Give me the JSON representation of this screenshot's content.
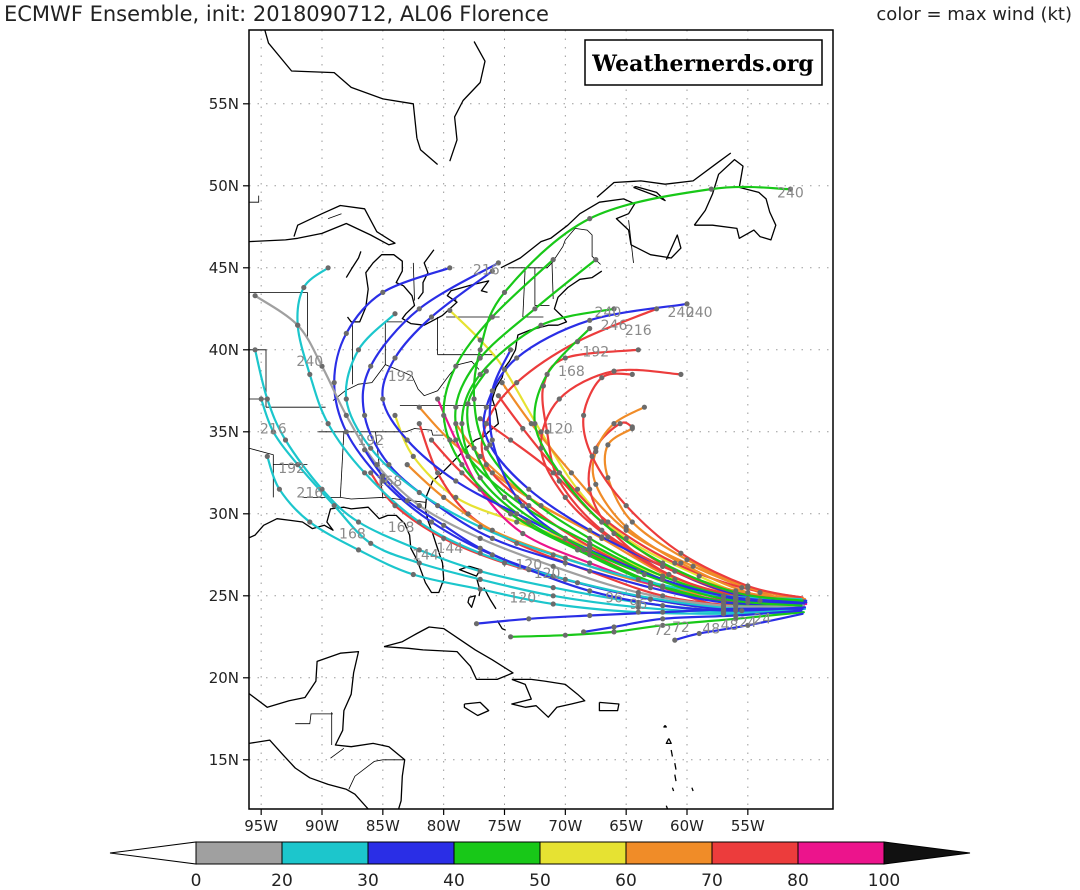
{
  "title": "ECMWF Ensemble, init: 2018090712, AL06 Florence",
  "subtitle": "color = max wind (kt)",
  "watermark": "Weathernerds.org",
  "map": {
    "lon_range": [
      -96,
      -48
    ],
    "lat_range": [
      12,
      59.5
    ],
    "lon_ticks": [
      {
        "value": -95,
        "label": "95W"
      },
      {
        "value": -90,
        "label": "90W"
      },
      {
        "value": -85,
        "label": "85W"
      },
      {
        "value": -80,
        "label": "80W"
      },
      {
        "value": -75,
        "label": "75W"
      },
      {
        "value": -70,
        "label": "70W"
      },
      {
        "value": -65,
        "label": "65W"
      },
      {
        "value": -60,
        "label": "60W"
      },
      {
        "value": -55,
        "label": "55W"
      }
    ],
    "lat_ticks": [
      {
        "value": 15,
        "label": "15N"
      },
      {
        "value": 20,
        "label": "20N"
      },
      {
        "value": 25,
        "label": "25N"
      },
      {
        "value": 30,
        "label": "30N"
      },
      {
        "value": 35,
        "label": "35N"
      },
      {
        "value": 40,
        "label": "40N"
      },
      {
        "value": 45,
        "label": "45N"
      },
      {
        "value": 50,
        "label": "50N"
      },
      {
        "value": 55,
        "label": "55N"
      }
    ]
  },
  "colorbar": {
    "breaks": [
      "0",
      "20",
      "30",
      "40",
      "50",
      "60",
      "70",
      "80",
      "100"
    ],
    "colors": [
      "#a0a0a0",
      "#1cc6cc",
      "#2a2ee6",
      "#18c818",
      "#e6e232",
      "#f08c28",
      "#ec3c3c",
      "#ec148c"
    ],
    "under_color": "#ffffff",
    "over_color": "#111111"
  },
  "wind_colors": {
    "0-20": "#a0a0a0",
    "20-30": "#1cc6cc",
    "30-40": "#2a2ee6",
    "40-50": "#18c818",
    "50-60": "#e6e232",
    "60-70": "#f08c28",
    "70-80": "#ec3c3c",
    "80-100": "#ec148c"
  },
  "track_labels": [
    {
      "text": "240",
      "lon": -51.5,
      "lat": 49.3
    },
    {
      "text": "216",
      "lon": -76.5,
      "lat": 44.6
    },
    {
      "text": "240",
      "lon": -66.5,
      "lat": 42.0
    },
    {
      "text": "240",
      "lon": -60.5,
      "lat": 42.0
    },
    {
      "text": "240",
      "lon": -59.0,
      "lat": 42.0
    },
    {
      "text": "246",
      "lon": -66.0,
      "lat": 41.2
    },
    {
      "text": "216",
      "lon": -64.0,
      "lat": 40.9
    },
    {
      "text": "192",
      "lon": -67.5,
      "lat": 39.6
    },
    {
      "text": "168",
      "lon": -69.5,
      "lat": 38.4
    },
    {
      "text": "240",
      "lon": -91.0,
      "lat": 39.0
    },
    {
      "text": "192",
      "lon": -83.5,
      "lat": 38.1
    },
    {
      "text": "216",
      "lon": -94.0,
      "lat": 34.9
    },
    {
      "text": "192",
      "lon": -86.0,
      "lat": 34.2
    },
    {
      "text": "120",
      "lon": -70.5,
      "lat": 34.9
    },
    {
      "text": "192",
      "lon": -92.5,
      "lat": 32.5
    },
    {
      "text": "216",
      "lon": -91.0,
      "lat": 31.0
    },
    {
      "text": "168",
      "lon": -84.5,
      "lat": 31.7
    },
    {
      "text": "168",
      "lon": -87.5,
      "lat": 28.5
    },
    {
      "text": "168",
      "lon": -83.5,
      "lat": 28.9
    },
    {
      "text": "144",
      "lon": -81.5,
      "lat": 27.2
    },
    {
      "text": "144",
      "lon": -79.5,
      "lat": 27.6
    },
    {
      "text": "120",
      "lon": -73.0,
      "lat": 26.6
    },
    {
      "text": "120",
      "lon": -71.5,
      "lat": 26.1
    },
    {
      "text": "120",
      "lon": -73.5,
      "lat": 24.6
    },
    {
      "text": "96",
      "lon": -66.0,
      "lat": 24.6
    },
    {
      "text": "96",
      "lon": -64.0,
      "lat": 24.2
    },
    {
      "text": "72",
      "lon": -62.0,
      "lat": 22.6
    },
    {
      "text": "72",
      "lon": -60.5,
      "lat": 22.8
    },
    {
      "text": "48",
      "lon": -58.0,
      "lat": 22.7
    },
    {
      "text": "48",
      "lon": -56.5,
      "lat": 22.9
    },
    {
      "text": "24",
      "lon": -55.0,
      "lat": 23.1
    },
    {
      "text": "24",
      "lon": -53.8,
      "lat": 23.3
    }
  ]
}
